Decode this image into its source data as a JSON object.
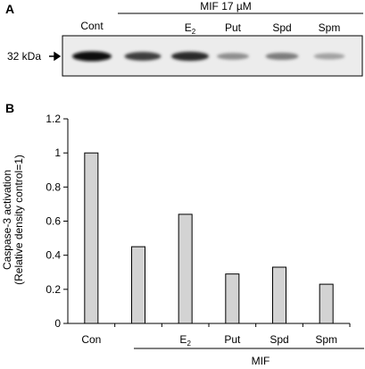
{
  "panel_a": {
    "label": "A",
    "treatment_header": "MIF 17 µM",
    "lanes": [
      {
        "label": "Cont",
        "sub": "",
        "intensity": 1.0
      },
      {
        "label": "",
        "sub": "",
        "intensity": 0.78
      },
      {
        "label": "E",
        "sub": "2",
        "intensity": 0.86
      },
      {
        "label": "Put",
        "sub": "",
        "intensity": 0.42
      },
      {
        "label": "Spd",
        "sub": "",
        "intensity": 0.5
      },
      {
        "label": "Spm",
        "sub": "",
        "intensity": 0.33
      }
    ],
    "marker_label": "32 kDa"
  },
  "panel_b": {
    "label": "B",
    "group_label": "MIF"
  },
  "chart_data": {
    "type": "bar",
    "categories": [
      "Con",
      "",
      "E2",
      "Put",
      "Spd",
      "Spm"
    ],
    "category_display": [
      {
        "main": "Con",
        "sub": ""
      },
      {
        "main": "",
        "sub": ""
      },
      {
        "main": "E",
        "sub": "2"
      },
      {
        "main": "Put",
        "sub": ""
      },
      {
        "main": "Spd",
        "sub": ""
      },
      {
        "main": "Spm",
        "sub": ""
      }
    ],
    "values": [
      1.0,
      0.45,
      0.64,
      0.29,
      0.33,
      0.23
    ],
    "ylabel_line1": "Caspase-3 activation",
    "ylabel_line2": "(Relative density control=1)",
    "xlabel": "",
    "ylim": [
      0,
      1.2
    ],
    "yticks": [
      "0",
      "0.2",
      "0.4",
      "0.6",
      "0.8",
      "1",
      "1.2"
    ],
    "grid": false,
    "bar_color": "#d3d3d3"
  }
}
